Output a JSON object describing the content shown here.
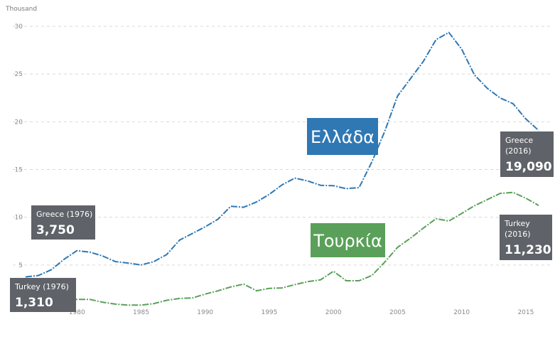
{
  "chart_data": {
    "type": "line",
    "ylabel": "Thousand",
    "xlim": [
      1975,
      2017
    ],
    "ylim": [
      0,
      30
    ],
    "yticks": [
      5,
      10,
      15,
      20,
      25,
      30
    ],
    "xticks": [
      1980,
      1985,
      1990,
      1995,
      2000,
      2005,
      2010,
      2015
    ],
    "grid": true,
    "x": [
      1976,
      1977,
      1978,
      1979,
      1980,
      1981,
      1982,
      1983,
      1984,
      1985,
      1986,
      1987,
      1988,
      1989,
      1990,
      1991,
      1992,
      1993,
      1994,
      1995,
      1996,
      1997,
      1998,
      1999,
      2000,
      2001,
      2002,
      2003,
      2004,
      2005,
      2006,
      2007,
      2008,
      2009,
      2010,
      2011,
      2012,
      2013,
      2014,
      2015,
      2016
    ],
    "series": [
      {
        "name": "Greece",
        "color": "#2f78b4",
        "values": [
          3.75,
          3.9,
          4.5,
          5.6,
          6.5,
          6.35,
          5.95,
          5.35,
          5.2,
          5.0,
          5.35,
          6.1,
          7.6,
          8.3,
          9.0,
          9.8,
          11.15,
          11.05,
          11.6,
          12.4,
          13.4,
          14.1,
          13.8,
          13.35,
          13.3,
          13.0,
          13.1,
          15.8,
          19.0,
          22.7,
          24.5,
          26.3,
          28.6,
          29.35,
          27.6,
          24.9,
          23.5,
          22.5,
          21.9,
          20.3,
          19.09
        ]
      },
      {
        "name": "Turkey",
        "color": "#5aa05a",
        "values": [
          1.31,
          1.3,
          1.35,
          1.4,
          1.4,
          1.4,
          1.1,
          0.9,
          0.8,
          0.8,
          0.95,
          1.3,
          1.5,
          1.55,
          1.95,
          2.3,
          2.7,
          3.0,
          2.3,
          2.55,
          2.6,
          2.95,
          3.25,
          3.45,
          4.35,
          3.35,
          3.35,
          3.9,
          5.3,
          6.85,
          7.8,
          8.85,
          9.85,
          9.6,
          10.4,
          11.2,
          11.85,
          12.5,
          12.6,
          12.0,
          11.23
        ]
      }
    ],
    "callouts": [
      {
        "line1": "Greece (1976)",
        "line2": "",
        "value": "3,750",
        "color": "#5f6268"
      },
      {
        "line1": "Turkey (1976)",
        "line2": "",
        "value": "1,310",
        "color": "#5f6268"
      },
      {
        "line1": "Greece",
        "line2": "(2016)",
        "value": "19,090",
        "color": "#5f6268"
      },
      {
        "line1": "Turkey",
        "line2": "(2016)",
        "value": "11,230",
        "color": "#5f6268"
      }
    ],
    "series_tags": [
      {
        "text": "Ελλάδα",
        "color": "#2f78b4"
      },
      {
        "text": "Τουρκία",
        "color": "#5aa05a"
      }
    ]
  }
}
